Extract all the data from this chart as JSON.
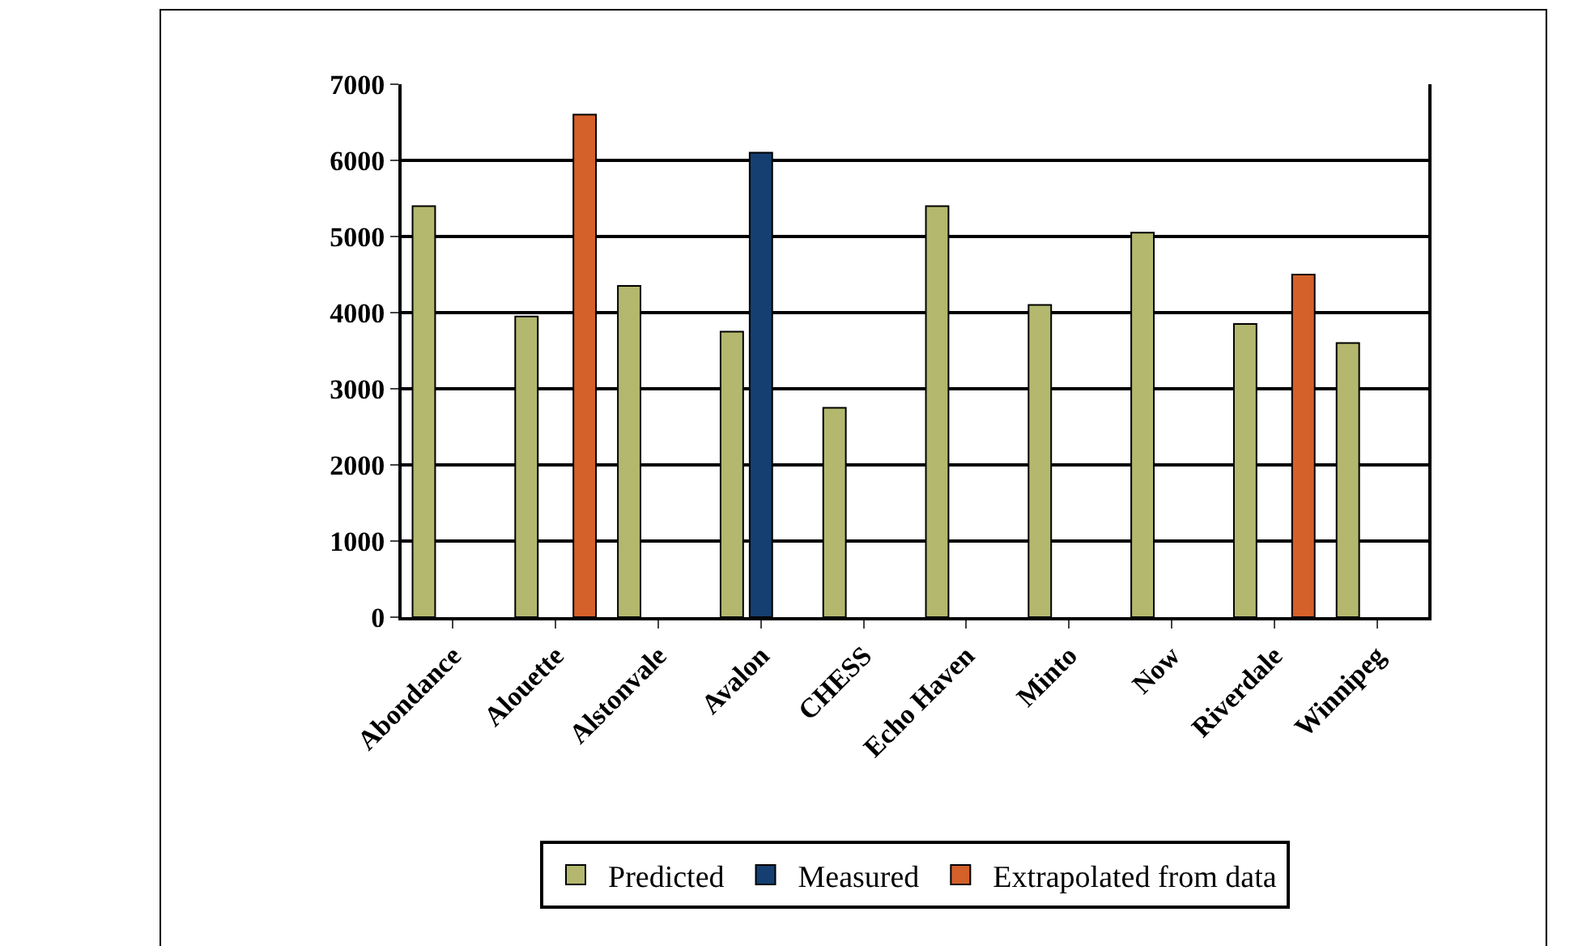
{
  "chart_data": {
    "type": "bar",
    "categories": [
      "Abondance",
      "Alouette",
      "Alstonvale",
      "Avalon",
      "CHESS",
      "Echo Haven",
      "Minto",
      "Now",
      "Riverdale",
      "Winnipeg"
    ],
    "series": [
      {
        "name": "Predicted",
        "color": "#b3b86e",
        "values": [
          5400,
          3950,
          4350,
          3750,
          2750,
          5400,
          4100,
          5050,
          3850,
          3600
        ]
      },
      {
        "name": "Measured",
        "color": "#143f70",
        "values": [
          null,
          null,
          null,
          6100,
          null,
          null,
          null,
          null,
          null,
          null
        ]
      },
      {
        "name": "Extrapolated from data",
        "color": "#d4602a",
        "values": [
          null,
          6600,
          null,
          null,
          null,
          null,
          null,
          null,
          4500,
          null
        ]
      }
    ],
    "ylim": [
      0,
      7000
    ],
    "yticks": [
      0,
      1000,
      2000,
      3000,
      4000,
      5000,
      6000,
      7000
    ],
    "grid": "y",
    "legend": "bottom"
  }
}
